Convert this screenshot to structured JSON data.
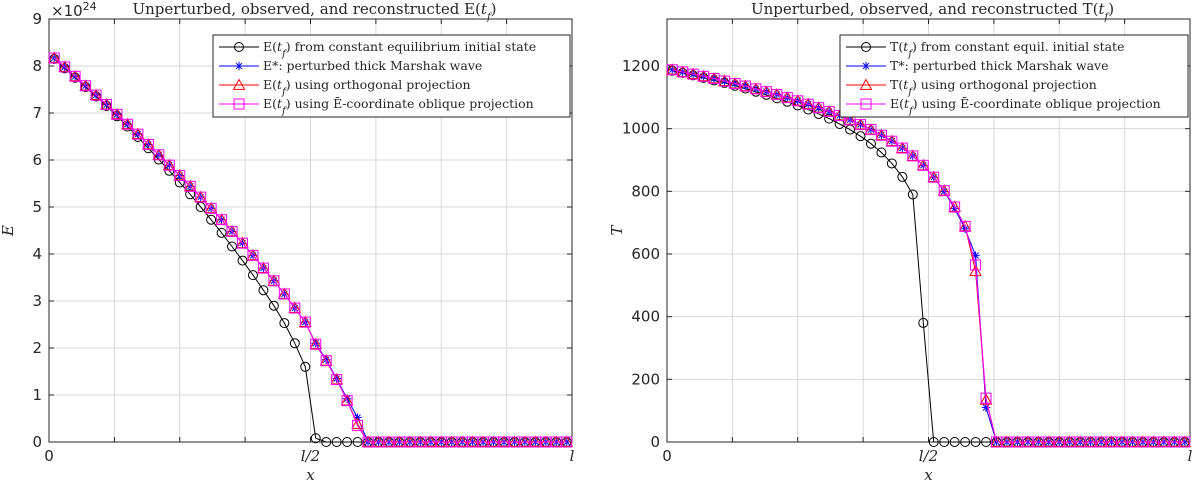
{
  "chart_data": [
    {
      "type": "line",
      "title": "Unperturbed, observed, and reconstructed E(t_f)",
      "xlabel": "x",
      "ylabel": "E",
      "y_exponent_label": "×10^24",
      "x_tick_labels": [
        "0",
        "l/2",
        "l"
      ],
      "y_ticks": [
        0,
        1,
        2,
        3,
        4,
        5,
        6,
        7,
        8,
        9
      ],
      "xlim": [
        0,
        1
      ],
      "ylim": [
        0,
        9
      ],
      "grid": true,
      "legend_position": "top-right",
      "series": [
        {
          "name": "E(t_f) from constant equilibrium initial state",
          "color": "#000000",
          "marker": "circle",
          "x": [
            0.01,
            0.03,
            0.05,
            0.07,
            0.09,
            0.11,
            0.13,
            0.15,
            0.17,
            0.19,
            0.21,
            0.23,
            0.25,
            0.27,
            0.29,
            0.31,
            0.33,
            0.35,
            0.37,
            0.39,
            0.41,
            0.43,
            0.45,
            0.47,
            0.49,
            0.51,
            0.53,
            0.55,
            0.57,
            0.59,
            0.61,
            0.63,
            0.65,
            0.67,
            0.69,
            0.71,
            0.73,
            0.75,
            0.77,
            0.79,
            0.81,
            0.83,
            0.85,
            0.87,
            0.89,
            0.91,
            0.93,
            0.95,
            0.97,
            0.99
          ],
          "y": [
            8.15,
            7.95,
            7.75,
            7.55,
            7.35,
            7.15,
            6.93,
            6.71,
            6.49,
            6.25,
            6.01,
            5.77,
            5.52,
            5.27,
            5.0,
            4.73,
            4.45,
            4.16,
            3.86,
            3.55,
            3.23,
            2.9,
            2.53,
            2.1,
            1.6,
            0.08,
            0,
            0,
            0,
            0,
            0,
            0,
            0,
            0,
            0,
            0,
            0,
            0,
            0,
            0,
            0,
            0,
            0,
            0,
            0,
            0,
            0,
            0,
            0,
            0
          ]
        },
        {
          "name": "E*: perturbed thick Marshak wave",
          "color": "#0000ff",
          "marker": "asterisk",
          "x": [
            0.01,
            0.03,
            0.05,
            0.07,
            0.09,
            0.11,
            0.13,
            0.15,
            0.17,
            0.19,
            0.21,
            0.23,
            0.25,
            0.27,
            0.29,
            0.31,
            0.33,
            0.35,
            0.37,
            0.39,
            0.41,
            0.43,
            0.45,
            0.47,
            0.49,
            0.51,
            0.53,
            0.55,
            0.57,
            0.59,
            0.61,
            0.63,
            0.65,
            0.67,
            0.69,
            0.71,
            0.73,
            0.75,
            0.77,
            0.79,
            0.81,
            0.83,
            0.85,
            0.87,
            0.89,
            0.91,
            0.93,
            0.95,
            0.97,
            0.99
          ],
          "y": [
            8.17,
            7.98,
            7.78,
            7.58,
            7.38,
            7.18,
            6.97,
            6.76,
            6.55,
            6.33,
            6.11,
            5.89,
            5.67,
            5.44,
            5.21,
            4.97,
            4.73,
            4.48,
            4.23,
            3.97,
            3.7,
            3.43,
            3.15,
            2.85,
            2.55,
            2.1,
            1.75,
            1.35,
            0.92,
            0.52,
            0,
            0,
            0,
            0,
            0,
            0,
            0,
            0,
            0,
            0,
            0,
            0,
            0,
            0,
            0,
            0,
            0,
            0,
            0,
            0
          ]
        },
        {
          "name": "E(t_f) using orthogonal projection",
          "color": "#ff0000",
          "marker": "triangle",
          "x": [
            0.01,
            0.03,
            0.05,
            0.07,
            0.09,
            0.11,
            0.13,
            0.15,
            0.17,
            0.19,
            0.21,
            0.23,
            0.25,
            0.27,
            0.29,
            0.31,
            0.33,
            0.35,
            0.37,
            0.39,
            0.41,
            0.43,
            0.45,
            0.47,
            0.49,
            0.51,
            0.53,
            0.55,
            0.57,
            0.59,
            0.61,
            0.63,
            0.65,
            0.67,
            0.69,
            0.71,
            0.73,
            0.75,
            0.77,
            0.79,
            0.81,
            0.83,
            0.85,
            0.87,
            0.89,
            0.91,
            0.93,
            0.95,
            0.97,
            0.99
          ],
          "y": [
            8.17,
            7.98,
            7.78,
            7.58,
            7.38,
            7.18,
            6.97,
            6.76,
            6.55,
            6.33,
            6.11,
            5.89,
            5.67,
            5.44,
            5.21,
            4.97,
            4.73,
            4.48,
            4.23,
            3.97,
            3.7,
            3.43,
            3.15,
            2.85,
            2.55,
            2.08,
            1.73,
            1.33,
            0.88,
            0.38,
            0,
            0,
            0,
            0,
            0,
            0,
            0,
            0,
            0,
            0,
            0,
            0,
            0,
            0,
            0,
            0,
            0,
            0,
            0,
            0
          ]
        },
        {
          "name": "E(t_f) using Ē-coordinate oblique projection",
          "color": "#ff00ff",
          "marker": "square",
          "x": [
            0.01,
            0.03,
            0.05,
            0.07,
            0.09,
            0.11,
            0.13,
            0.15,
            0.17,
            0.19,
            0.21,
            0.23,
            0.25,
            0.27,
            0.29,
            0.31,
            0.33,
            0.35,
            0.37,
            0.39,
            0.41,
            0.43,
            0.45,
            0.47,
            0.49,
            0.51,
            0.53,
            0.55,
            0.57,
            0.59,
            0.61,
            0.63,
            0.65,
            0.67,
            0.69,
            0.71,
            0.73,
            0.75,
            0.77,
            0.79,
            0.81,
            0.83,
            0.85,
            0.87,
            0.89,
            0.91,
            0.93,
            0.95,
            0.97,
            0.99
          ],
          "y": [
            8.17,
            7.98,
            7.78,
            7.58,
            7.38,
            7.18,
            6.97,
            6.76,
            6.55,
            6.33,
            6.11,
            5.89,
            5.67,
            5.44,
            5.21,
            4.97,
            4.73,
            4.48,
            4.23,
            3.97,
            3.7,
            3.43,
            3.15,
            2.85,
            2.55,
            2.08,
            1.73,
            1.33,
            0.88,
            0.35,
            0,
            0,
            0,
            0,
            0,
            0,
            0,
            0,
            0,
            0,
            0,
            0,
            0,
            0,
            0,
            0,
            0,
            0,
            0,
            0
          ]
        }
      ]
    },
    {
      "type": "line",
      "title": "Unperturbed, observed, and reconstructed T(t_f)",
      "xlabel": "x",
      "ylabel": "T",
      "x_tick_labels": [
        "0",
        "l/2",
        "l"
      ],
      "y_ticks": [
        0,
        200,
        400,
        600,
        800,
        1000,
        1200
      ],
      "xlim": [
        0,
        1
      ],
      "ylim": [
        0,
        1350
      ],
      "grid": true,
      "legend_position": "top-right",
      "series": [
        {
          "name": "T(t_f) from constant equil. initial state",
          "color": "#000000",
          "marker": "circle",
          "x": [
            0.01,
            0.03,
            0.05,
            0.07,
            0.09,
            0.11,
            0.13,
            0.15,
            0.17,
            0.19,
            0.21,
            0.23,
            0.25,
            0.27,
            0.29,
            0.31,
            0.33,
            0.35,
            0.37,
            0.39,
            0.41,
            0.43,
            0.45,
            0.47,
            0.49,
            0.51,
            0.53,
            0.55,
            0.57,
            0.59,
            0.61,
            0.63,
            0.65,
            0.67,
            0.69,
            0.71,
            0.73,
            0.75,
            0.77,
            0.79,
            0.81,
            0.83,
            0.85,
            0.87,
            0.89,
            0.91,
            0.93,
            0.95,
            0.97,
            0.99
          ],
          "y": [
            1185,
            1178,
            1170,
            1162,
            1154,
            1146,
            1137,
            1128,
            1118,
            1108,
            1097,
            1086,
            1074,
            1061,
            1047,
            1032,
            1015,
            997,
            976,
            952,
            924,
            889,
            846,
            790,
            380,
            0,
            0,
            0,
            0,
            0,
            0,
            0,
            0,
            0,
            0,
            0,
            0,
            0,
            0,
            0,
            0,
            0,
            0,
            0,
            0,
            0,
            0,
            0,
            0,
            0
          ]
        },
        {
          "name": "T*: perturbed thick Marshak wave",
          "color": "#0000ff",
          "marker": "asterisk",
          "x": [
            0.01,
            0.03,
            0.05,
            0.07,
            0.09,
            0.11,
            0.13,
            0.15,
            0.17,
            0.19,
            0.21,
            0.23,
            0.25,
            0.27,
            0.29,
            0.31,
            0.33,
            0.35,
            0.37,
            0.39,
            0.41,
            0.43,
            0.45,
            0.47,
            0.49,
            0.51,
            0.53,
            0.55,
            0.57,
            0.59,
            0.61,
            0.63,
            0.65,
            0.67,
            0.69,
            0.71,
            0.73,
            0.75,
            0.77,
            0.79,
            0.81,
            0.83,
            0.85,
            0.87,
            0.89,
            0.91,
            0.93,
            0.95,
            0.97,
            0.99
          ],
          "y": [
            1188,
            1181,
            1174,
            1167,
            1160,
            1152,
            1144,
            1136,
            1127,
            1118,
            1109,
            1099,
            1089,
            1078,
            1067,
            1055,
            1042,
            1028,
            1013,
            997,
            979,
            960,
            938,
            913,
            883,
            845,
            800,
            745,
            680,
            595,
            110,
            0,
            0,
            0,
            0,
            0,
            0,
            0,
            0,
            0,
            0,
            0,
            0,
            0,
            0,
            0,
            0,
            0,
            0,
            0
          ]
        },
        {
          "name": "T(t_f) using orthogonal projection",
          "color": "#ff0000",
          "marker": "triangle",
          "x": [
            0.01,
            0.03,
            0.05,
            0.07,
            0.09,
            0.11,
            0.13,
            0.15,
            0.17,
            0.19,
            0.21,
            0.23,
            0.25,
            0.27,
            0.29,
            0.31,
            0.33,
            0.35,
            0.37,
            0.39,
            0.41,
            0.43,
            0.45,
            0.47,
            0.49,
            0.51,
            0.53,
            0.55,
            0.57,
            0.59,
            0.61,
            0.63,
            0.65,
            0.67,
            0.69,
            0.71,
            0.73,
            0.75,
            0.77,
            0.79,
            0.81,
            0.83,
            0.85,
            0.87,
            0.89,
            0.91,
            0.93,
            0.95,
            0.97,
            0.99
          ],
          "y": [
            1188,
            1181,
            1174,
            1167,
            1160,
            1152,
            1144,
            1136,
            1127,
            1118,
            1109,
            1099,
            1089,
            1078,
            1067,
            1055,
            1042,
            1028,
            1013,
            997,
            979,
            960,
            938,
            913,
            883,
            845,
            802,
            750,
            688,
            545,
            135,
            0,
            0,
            0,
            0,
            0,
            0,
            0,
            0,
            0,
            0,
            0,
            0,
            0,
            0,
            0,
            0,
            0,
            0,
            0
          ]
        },
        {
          "name": "E(t_f) using Ē-coordinate oblique projection",
          "color": "#ff00ff",
          "marker": "square",
          "x": [
            0.01,
            0.03,
            0.05,
            0.07,
            0.09,
            0.11,
            0.13,
            0.15,
            0.17,
            0.19,
            0.21,
            0.23,
            0.25,
            0.27,
            0.29,
            0.31,
            0.33,
            0.35,
            0.37,
            0.39,
            0.41,
            0.43,
            0.45,
            0.47,
            0.49,
            0.51,
            0.53,
            0.55,
            0.57,
            0.59,
            0.61,
            0.63,
            0.65,
            0.67,
            0.69,
            0.71,
            0.73,
            0.75,
            0.77,
            0.79,
            0.81,
            0.83,
            0.85,
            0.87,
            0.89,
            0.91,
            0.93,
            0.95,
            0.97,
            0.99
          ],
          "y": [
            1188,
            1181,
            1174,
            1167,
            1160,
            1152,
            1144,
            1136,
            1127,
            1118,
            1109,
            1099,
            1089,
            1078,
            1067,
            1055,
            1042,
            1028,
            1013,
            997,
            979,
            960,
            938,
            913,
            883,
            845,
            802,
            750,
            688,
            565,
            140,
            0,
            0,
            0,
            0,
            0,
            0,
            0,
            0,
            0,
            0,
            0,
            0,
            0,
            0,
            0,
            0,
            0,
            0,
            0
          ]
        }
      ]
    }
  ]
}
